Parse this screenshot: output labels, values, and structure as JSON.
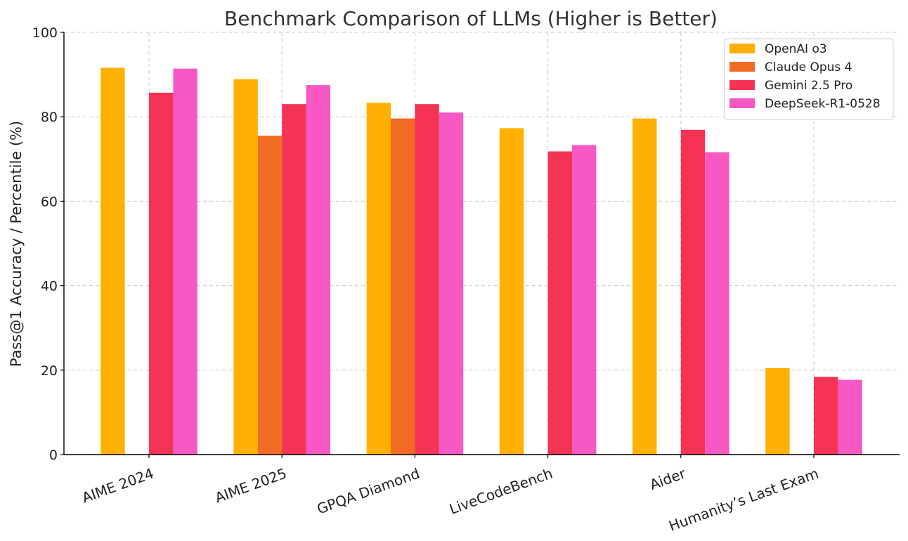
{
  "chart_data": {
    "type": "bar",
    "title": "Benchmark Comparison of LLMs (Higher is Better)",
    "xlabel": "",
    "ylabel": "Pass@1 Accuracy / Percentile (%)",
    "ylim": [
      0,
      100
    ],
    "yticks": [
      0,
      20,
      40,
      60,
      80,
      100
    ],
    "grid": true,
    "legend_position": "top-right",
    "categories": [
      "AIME 2024",
      "AIME 2025",
      "GPQA Diamond",
      "LiveCodeBench",
      "Aider",
      "Humanity’s Last Exam"
    ],
    "series": [
      {
        "name": "OpenAI o3",
        "color": "#FFB000",
        "values": [
          91.6,
          88.9,
          83.3,
          77.3,
          79.6,
          20.5
        ]
      },
      {
        "name": "Claude Opus 4",
        "color": "#F26B22",
        "values": [
          null,
          75.5,
          79.6,
          null,
          null,
          null
        ]
      },
      {
        "name": "Gemini 2.5 Pro",
        "color": "#F43355",
        "values": [
          85.7,
          83.0,
          83.0,
          71.8,
          76.9,
          18.4
        ]
      },
      {
        "name": "DeepSeek-R1-0528",
        "color": "#F758C4",
        "values": [
          91.4,
          87.5,
          81.0,
          73.3,
          71.6,
          17.7
        ]
      }
    ]
  }
}
